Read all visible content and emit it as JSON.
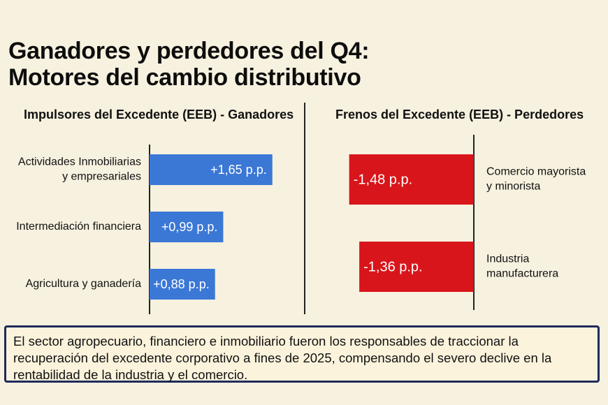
{
  "title": {
    "line1": "Ganadores y perdedores del Q4:",
    "line2": "Motores del cambio distributivo"
  },
  "chart_data": [
    {
      "type": "bar",
      "orientation": "horizontal",
      "title": "Impulsores del Excedente (EEB) - Ganadores",
      "categories": [
        [
          "Actividades Inmobiliarias",
          "y empresariales"
        ],
        [
          "Intermediación financiera"
        ],
        [
          "Agricultura y ganadería"
        ]
      ],
      "values": [
        1.65,
        0.99,
        0.88
      ],
      "labels": [
        "+1,65 p.p.",
        "+0,99 p.p.",
        "+0,88 p.p."
      ],
      "unit": "p.p.",
      "color": "#3b78d6"
    },
    {
      "type": "bar",
      "orientation": "horizontal",
      "title": "Frenos del Excedente (EEB) - Perdedores",
      "categories": [
        [
          "Comercio mayorista",
          "y minorista"
        ],
        [
          "Industria",
          "manufacturera"
        ]
      ],
      "values": [
        -1.48,
        -1.36
      ],
      "labels": [
        "-1,48 p.p.",
        "-1,36 p.p."
      ],
      "unit": "p.p.",
      "color": "#d8151b"
    }
  ],
  "note": "El sector agropecuario, financiero e inmobiliario fueron los responsables de traccionar la recuperación del excedente corporativo a fines de 2025, compensando el severo declive en la rentabilidad de la industria y el comercio."
}
